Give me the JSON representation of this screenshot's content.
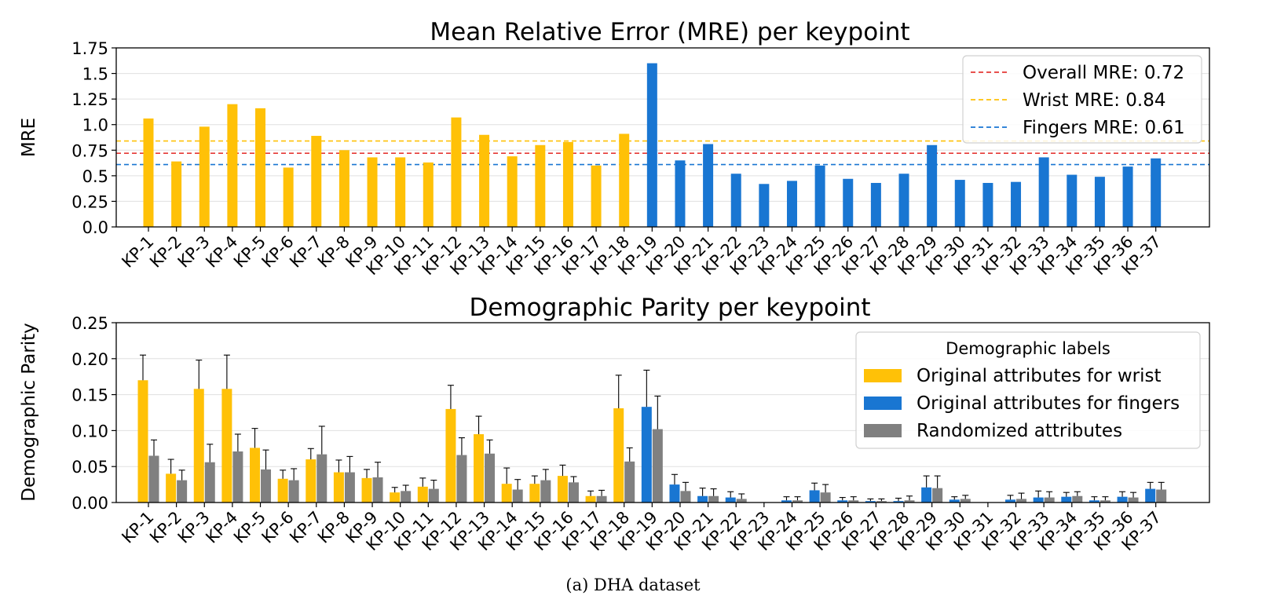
{
  "caption": "(a) DHA dataset",
  "colors": {
    "wrist": "#FFC107",
    "fingers": "#1976D2",
    "random": "#808080",
    "overall_line": "#E53935",
    "wrist_line": "#FFC107",
    "fingers_line": "#1976D2"
  },
  "chart_data": [
    {
      "type": "bar",
      "title": "Mean Relative Error (MRE) per keypoint",
      "xlabel": "",
      "ylabel": "MRE",
      "ylim": [
        0,
        1.75
      ],
      "yticks": [
        0.0,
        0.25,
        0.5,
        0.75,
        1.0,
        1.25,
        1.5,
        1.75
      ],
      "ytick_labels": [
        "0.0",
        "0.25",
        "0.5",
        "0.75",
        "1.0",
        "1.25",
        "1.5",
        "1.75"
      ],
      "grid": true,
      "categories": [
        "KP-1",
        "KP-2",
        "KP-3",
        "KP-4",
        "KP-5",
        "KP-6",
        "KP-7",
        "KP-8",
        "KP-9",
        "KP-10",
        "KP-11",
        "KP-12",
        "KP-13",
        "KP-14",
        "KP-15",
        "KP-16",
        "KP-17",
        "KP-18",
        "KP-19",
        "KP-20",
        "KP-21",
        "KP-22",
        "KP-23",
        "KP-24",
        "KP-25",
        "KP-26",
        "KP-27",
        "KP-28",
        "KP-29",
        "KP-30",
        "KP-31",
        "KP-32",
        "KP-33",
        "KP-34",
        "KP-35",
        "KP-36",
        "KP-37"
      ],
      "values": [
        1.06,
        0.64,
        0.98,
        1.2,
        1.16,
        0.58,
        0.89,
        0.75,
        0.68,
        0.68,
        0.63,
        1.07,
        0.9,
        0.69,
        0.8,
        0.83,
        0.6,
        0.91,
        1.6,
        0.65,
        0.81,
        0.52,
        0.42,
        0.45,
        0.6,
        0.47,
        0.43,
        0.52,
        0.8,
        0.46,
        0.43,
        0.44,
        0.68,
        0.51,
        0.49,
        0.59,
        0.67
      ],
      "bar_groups": [
        "wrist",
        "wrist",
        "wrist",
        "wrist",
        "wrist",
        "wrist",
        "wrist",
        "wrist",
        "wrist",
        "wrist",
        "wrist",
        "wrist",
        "wrist",
        "wrist",
        "wrist",
        "wrist",
        "wrist",
        "wrist",
        "fingers",
        "fingers",
        "fingers",
        "fingers",
        "fingers",
        "fingers",
        "fingers",
        "fingers",
        "fingers",
        "fingers",
        "fingers",
        "fingers",
        "fingers",
        "fingers",
        "fingers",
        "fingers",
        "fingers",
        "fingers",
        "fingers"
      ],
      "reference_lines": [
        {
          "name": "Overall MRE: 0.72",
          "value": 0.72,
          "color_key": "overall_line"
        },
        {
          "name": "Wrist MRE: 0.84",
          "value": 0.84,
          "color_key": "wrist_line"
        },
        {
          "name": "Fingers MRE: 0.61",
          "value": 0.61,
          "color_key": "fingers_line"
        }
      ],
      "legend_position": "top-right"
    },
    {
      "type": "bar",
      "title": "Demographic Parity per keypoint",
      "xlabel": "",
      "ylabel": "Demographic Parity",
      "ylim": [
        0,
        0.25
      ],
      "yticks": [
        0.0,
        0.05,
        0.1,
        0.15,
        0.2,
        0.25
      ],
      "ytick_labels": [
        "0.00",
        "0.05",
        "0.10",
        "0.15",
        "0.20",
        "0.25"
      ],
      "grid": true,
      "categories": [
        "KP-1",
        "KP-2",
        "KP-3",
        "KP-4",
        "KP-5",
        "KP-6",
        "KP-7",
        "KP-8",
        "KP-9",
        "KP-10",
        "KP-11",
        "KP-12",
        "KP-13",
        "KP-14",
        "KP-15",
        "KP-16",
        "KP-17",
        "KP-18",
        "KP-19",
        "KP-20",
        "KP-21",
        "KP-22",
        "KP-23",
        "KP-24",
        "KP-25",
        "KP-26",
        "KP-27",
        "KP-28",
        "KP-29",
        "KP-30",
        "KP-31",
        "KP-32",
        "KP-33",
        "KP-34",
        "KP-35",
        "KP-36",
        "KP-37"
      ],
      "legend_title": "Demographic labels",
      "legend_position": "top-right",
      "series": [
        {
          "name": "Original attributes for wrist / Original attributes for fingers",
          "legend_names": [
            "Original attributes for wrist",
            "Original attributes for fingers"
          ],
          "values": [
            0.17,
            0.04,
            0.158,
            0.158,
            0.076,
            0.033,
            0.06,
            0.042,
            0.034,
            0.014,
            0.022,
            0.13,
            0.095,
            0.026,
            0.026,
            0.037,
            0.009,
            0.131,
            0.133,
            0.025,
            0.009,
            0.007,
            0.0,
            0.003,
            0.017,
            0.003,
            0.002,
            0.002,
            0.021,
            0.004,
            0.0,
            0.004,
            0.007,
            0.008,
            0.003,
            0.008,
            0.019
          ],
          "errors": [
            0.035,
            0.02,
            0.04,
            0.047,
            0.027,
            0.012,
            0.015,
            0.017,
            0.012,
            0.007,
            0.012,
            0.033,
            0.025,
            0.022,
            0.011,
            0.015,
            0.007,
            0.046,
            0.051,
            0.014,
            0.011,
            0.008,
            0.0,
            0.005,
            0.01,
            0.004,
            0.003,
            0.004,
            0.016,
            0.004,
            0.0,
            0.006,
            0.009,
            0.006,
            0.005,
            0.007,
            0.009
          ]
        },
        {
          "name": "Randomized attributes",
          "values": [
            0.065,
            0.031,
            0.056,
            0.071,
            0.046,
            0.031,
            0.067,
            0.042,
            0.035,
            0.016,
            0.019,
            0.066,
            0.068,
            0.018,
            0.031,
            0.028,
            0.009,
            0.057,
            0.102,
            0.016,
            0.009,
            0.005,
            0.0,
            0.003,
            0.014,
            0.003,
            0.002,
            0.003,
            0.02,
            0.005,
            0.0,
            0.005,
            0.007,
            0.009,
            0.003,
            0.007,
            0.018
          ],
          "errors": [
            0.022,
            0.014,
            0.025,
            0.024,
            0.027,
            0.016,
            0.039,
            0.022,
            0.021,
            0.008,
            0.012,
            0.024,
            0.019,
            0.014,
            0.015,
            0.008,
            0.008,
            0.019,
            0.046,
            0.012,
            0.01,
            0.007,
            0.0,
            0.005,
            0.011,
            0.005,
            0.003,
            0.006,
            0.017,
            0.005,
            0.0,
            0.008,
            0.008,
            0.006,
            0.005,
            0.007,
            0.01
          ]
        }
      ],
      "bar_groups": [
        "wrist",
        "wrist",
        "wrist",
        "wrist",
        "wrist",
        "wrist",
        "wrist",
        "wrist",
        "wrist",
        "wrist",
        "wrist",
        "wrist",
        "wrist",
        "wrist",
        "wrist",
        "wrist",
        "wrist",
        "wrist",
        "fingers",
        "fingers",
        "fingers",
        "fingers",
        "fingers",
        "fingers",
        "fingers",
        "fingers",
        "fingers",
        "fingers",
        "fingers",
        "fingers",
        "fingers",
        "fingers",
        "fingers",
        "fingers",
        "fingers",
        "fingers",
        "fingers"
      ]
    }
  ]
}
